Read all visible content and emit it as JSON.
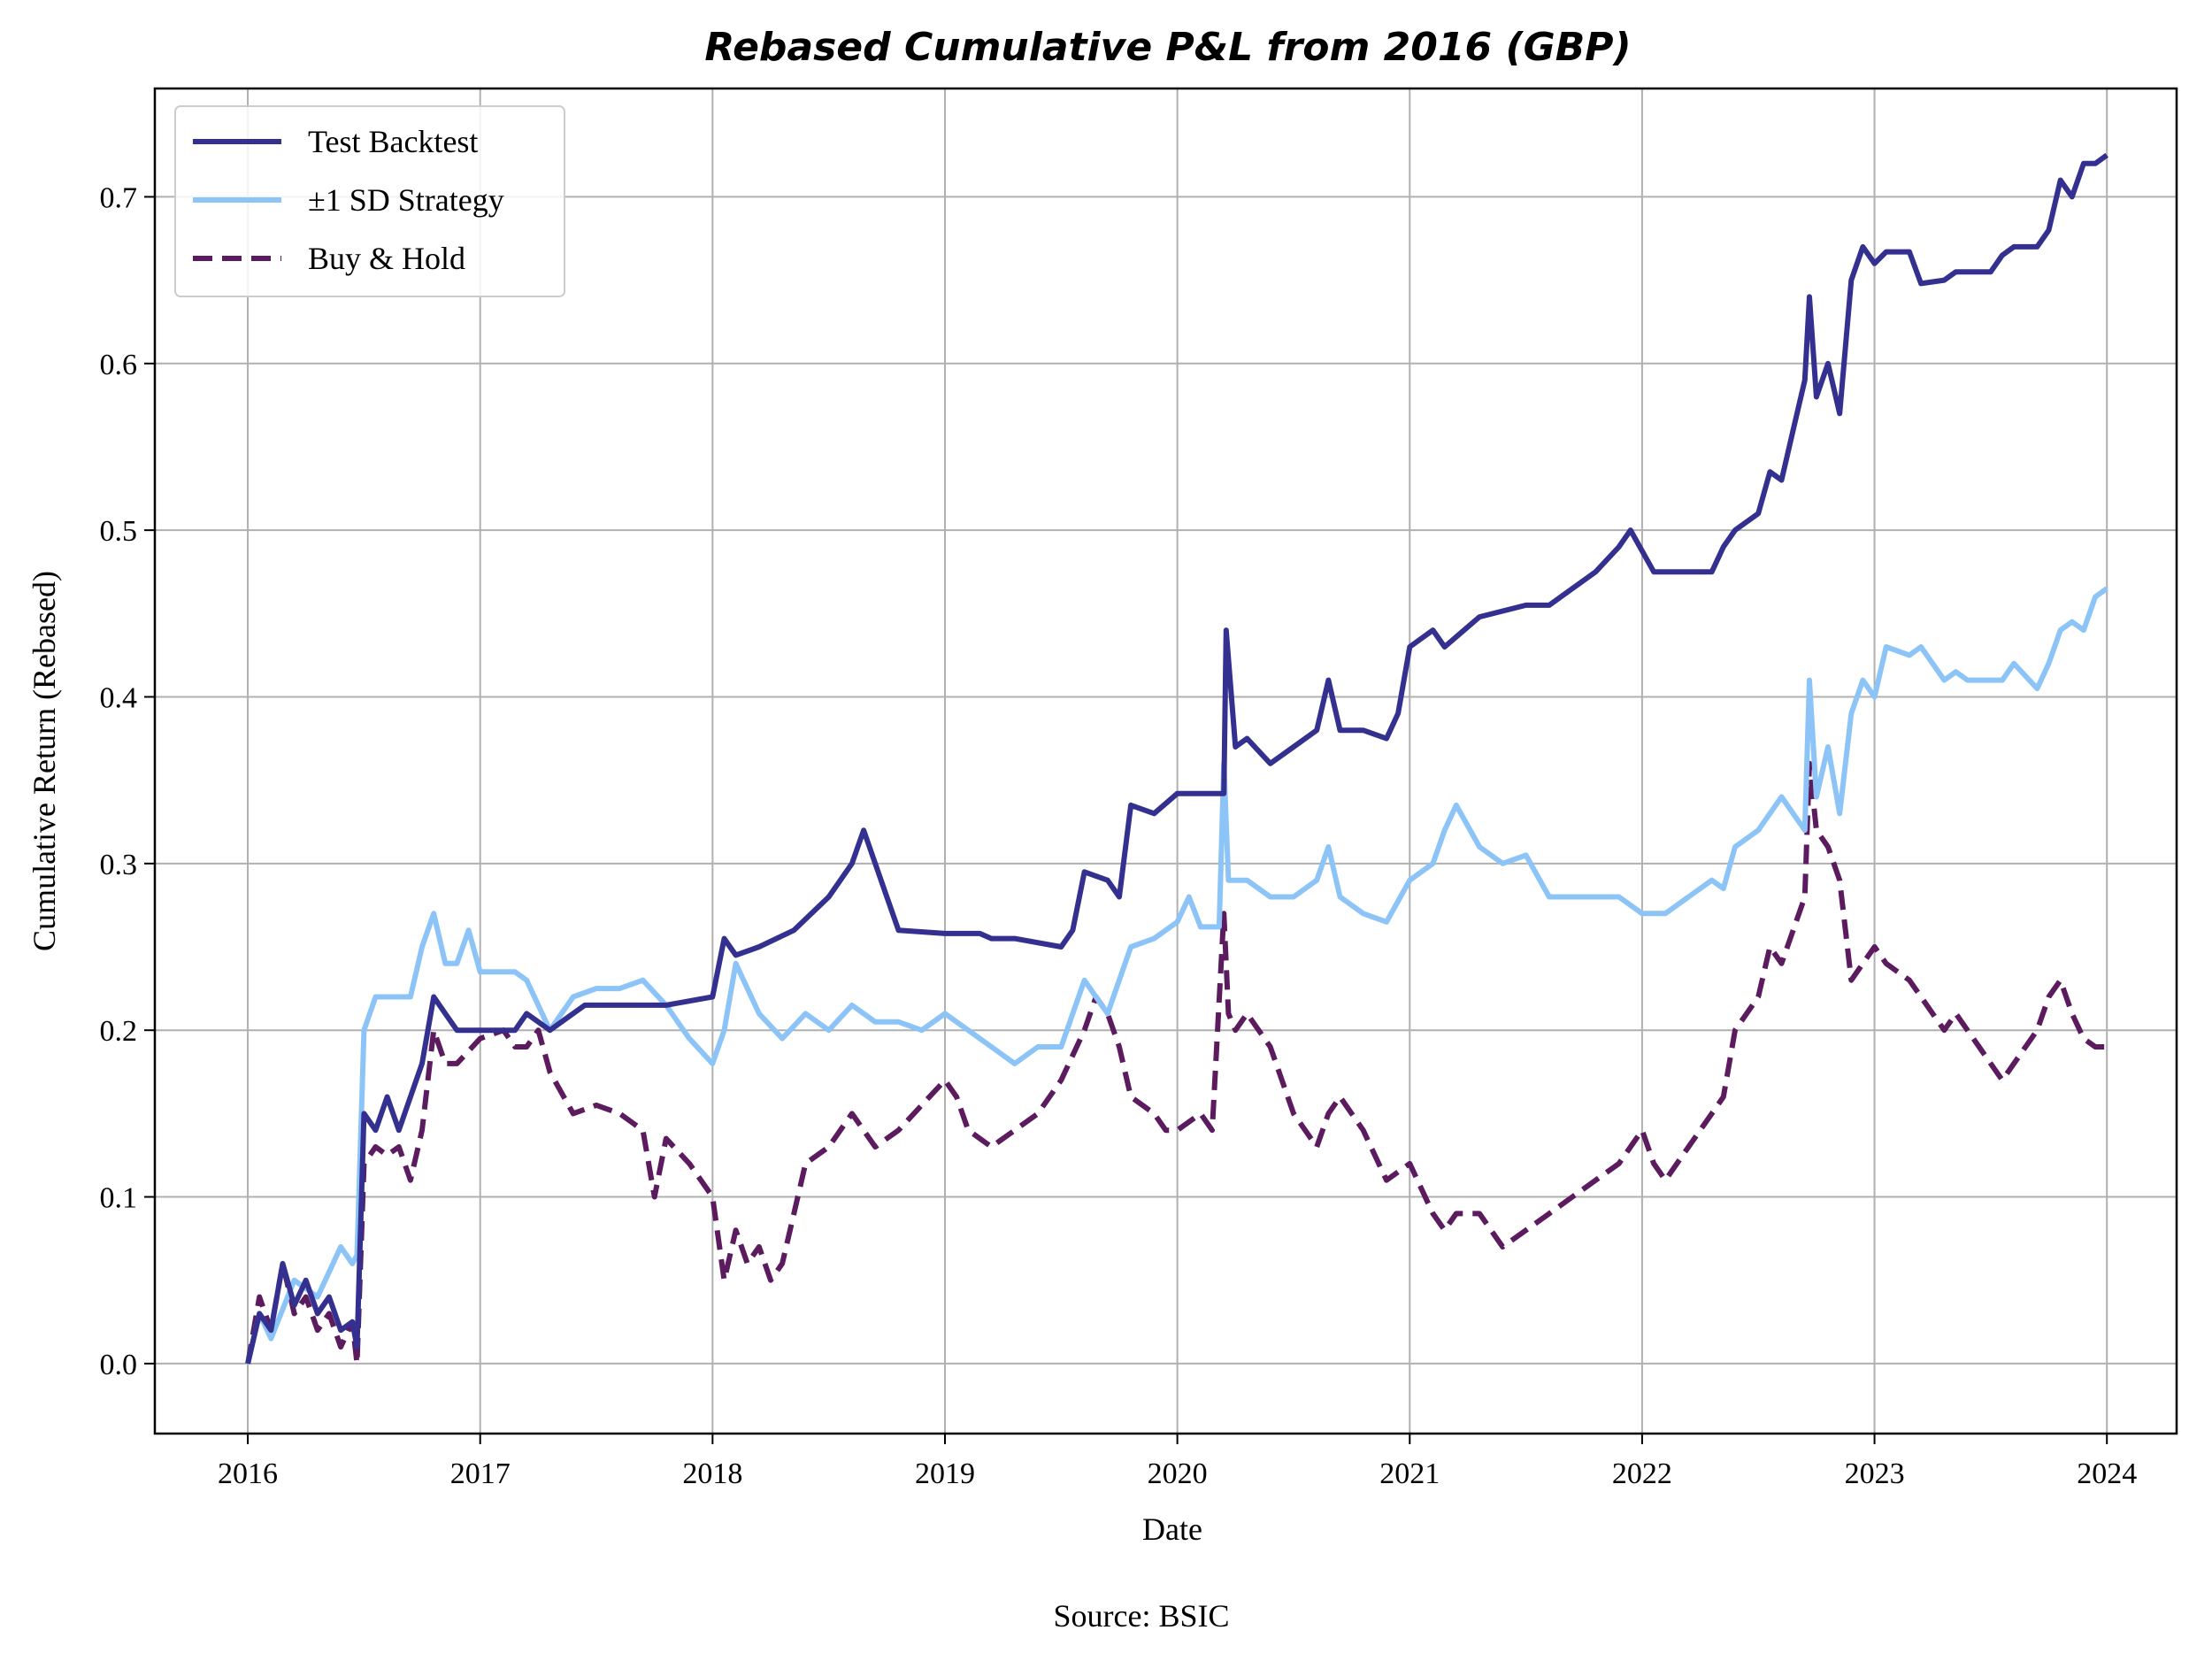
{
  "chart_data": {
    "type": "line",
    "title": "Rebased Cumulative P&L from 2016 (GBP)",
    "xlabel": "Date",
    "ylabel": "Cumulative Return (Rebased)",
    "source": "Source: BSIC",
    "xlim": [
      2015.6,
      2024.3
    ],
    "ylim": [
      -0.042,
      0.765
    ],
    "x_ticks": [
      2016,
      2017,
      2018,
      2019,
      2020,
      2021,
      2022,
      2023,
      2024
    ],
    "x_tick_labels": [
      "2016",
      "2017",
      "2018",
      "2019",
      "2020",
      "2021",
      "2022",
      "2023",
      "2024"
    ],
    "y_ticks": [
      0.0,
      0.1,
      0.2,
      0.3,
      0.4,
      0.5,
      0.6,
      0.7
    ],
    "y_tick_labels": [
      "0.0",
      "0.1",
      "0.2",
      "0.3",
      "0.4",
      "0.5",
      "0.6",
      "0.7"
    ],
    "grid": true,
    "legend_position": "top-left",
    "series": [
      {
        "name": "Test Backtest",
        "color": "#343090",
        "dash": "solid",
        "x": [
          2016.0,
          2016.05,
          2016.1,
          2016.15,
          2016.2,
          2016.25,
          2016.3,
          2016.35,
          2016.4,
          2016.45,
          2016.47,
          2016.5,
          2016.55,
          2016.6,
          2016.65,
          2016.7,
          2016.75,
          2016.8,
          2016.85,
          2016.9,
          2017.0,
          2017.15,
          2017.2,
          2017.3,
          2017.45,
          2017.6,
          2017.8,
          2018.0,
          2018.05,
          2018.1,
          2018.2,
          2018.35,
          2018.5,
          2018.6,
          2018.65,
          2018.75,
          2018.8,
          2019.0,
          2019.05,
          2019.15,
          2019.2,
          2019.3,
          2019.5,
          2019.55,
          2019.6,
          2019.7,
          2019.75,
          2019.8,
          2019.9,
          2020.0,
          2020.1,
          2020.2,
          2020.21,
          2020.25,
          2020.3,
          2020.4,
          2020.5,
          2020.6,
          2020.65,
          2020.7,
          2020.8,
          2020.9,
          2020.95,
          2021.0,
          2021.1,
          2021.15,
          2021.3,
          2021.5,
          2021.6,
          2021.7,
          2021.8,
          2021.9,
          2021.95,
          2022.05,
          2022.2,
          2022.3,
          2022.35,
          2022.4,
          2022.5,
          2022.55,
          2022.6,
          2022.65,
          2022.7,
          2022.72,
          2022.75,
          2022.8,
          2022.85,
          2022.9,
          2022.95,
          2023.0,
          2023.05,
          2023.15,
          2023.2,
          2023.3,
          2023.35,
          2023.45,
          2023.5,
          2023.55,
          2023.6,
          2023.7,
          2023.75,
          2023.8,
          2023.85,
          2023.9,
          2023.95,
          2024.0
        ],
        "y": [
          0.0,
          0.03,
          0.02,
          0.06,
          0.035,
          0.05,
          0.03,
          0.04,
          0.02,
          0.025,
          0.01,
          0.15,
          0.14,
          0.16,
          0.14,
          0.16,
          0.18,
          0.22,
          0.21,
          0.2,
          0.2,
          0.2,
          0.21,
          0.2,
          0.215,
          0.215,
          0.215,
          0.22,
          0.255,
          0.245,
          0.25,
          0.26,
          0.28,
          0.3,
          0.32,
          0.28,
          0.26,
          0.258,
          0.258,
          0.258,
          0.255,
          0.255,
          0.25,
          0.26,
          0.295,
          0.29,
          0.28,
          0.335,
          0.33,
          0.342,
          0.342,
          0.342,
          0.44,
          0.37,
          0.375,
          0.36,
          0.37,
          0.38,
          0.41,
          0.38,
          0.38,
          0.375,
          0.39,
          0.43,
          0.44,
          0.43,
          0.448,
          0.455,
          0.455,
          0.465,
          0.475,
          0.49,
          0.5,
          0.475,
          0.475,
          0.475,
          0.49,
          0.5,
          0.51,
          0.535,
          0.53,
          0.56,
          0.59,
          0.64,
          0.58,
          0.6,
          0.57,
          0.65,
          0.67,
          0.66,
          0.667,
          0.667,
          0.648,
          0.65,
          0.655,
          0.655,
          0.655,
          0.665,
          0.67,
          0.67,
          0.68,
          0.71,
          0.7,
          0.72,
          0.72,
          0.725
        ]
      },
      {
        "name": "±1 SD Strategy",
        "color": "#8CC4F8",
        "dash": "solid",
        "x": [
          2016.0,
          2016.05,
          2016.1,
          2016.2,
          2016.3,
          2016.4,
          2016.45,
          2016.47,
          2016.5,
          2016.55,
          2016.6,
          2016.65,
          2016.7,
          2016.75,
          2016.8,
          2016.85,
          2016.9,
          2016.95,
          2017.0,
          2017.1,
          2017.15,
          2017.2,
          2017.3,
          2017.4,
          2017.5,
          2017.6,
          2017.7,
          2017.8,
          2017.9,
          2018.0,
          2018.05,
          2018.1,
          2018.2,
          2018.3,
          2018.4,
          2018.5,
          2018.6,
          2018.7,
          2018.8,
          2018.9,
          2019.0,
          2019.1,
          2019.2,
          2019.3,
          2019.4,
          2019.5,
          2019.6,
          2019.7,
          2019.8,
          2019.9,
          2020.0,
          2020.05,
          2020.1,
          2020.18,
          2020.2,
          2020.22,
          2020.3,
          2020.4,
          2020.5,
          2020.6,
          2020.65,
          2020.7,
          2020.8,
          2020.9,
          2021.0,
          2021.1,
          2021.15,
          2021.2,
          2021.3,
          2021.4,
          2021.5,
          2021.6,
          2021.7,
          2021.8,
          2021.9,
          2022.0,
          2022.1,
          2022.2,
          2022.3,
          2022.35,
          2022.4,
          2022.5,
          2022.6,
          2022.7,
          2022.72,
          2022.75,
          2022.8,
          2022.85,
          2022.9,
          2022.95,
          2023.0,
          2023.05,
          2023.15,
          2023.2,
          2023.3,
          2023.35,
          2023.4,
          2023.5,
          2023.55,
          2023.6,
          2023.7,
          2023.75,
          2023.8,
          2023.85,
          2023.9,
          2023.95,
          2024.0
        ],
        "y": [
          0.0,
          0.03,
          0.015,
          0.05,
          0.04,
          0.07,
          0.06,
          0.065,
          0.2,
          0.22,
          0.22,
          0.22,
          0.22,
          0.25,
          0.27,
          0.24,
          0.24,
          0.26,
          0.235,
          0.235,
          0.235,
          0.23,
          0.2,
          0.22,
          0.225,
          0.225,
          0.23,
          0.215,
          0.195,
          0.18,
          0.2,
          0.24,
          0.21,
          0.195,
          0.21,
          0.2,
          0.215,
          0.205,
          0.205,
          0.2,
          0.21,
          0.2,
          0.19,
          0.18,
          0.19,
          0.19,
          0.23,
          0.21,
          0.25,
          0.255,
          0.265,
          0.28,
          0.262,
          0.262,
          0.36,
          0.29,
          0.29,
          0.28,
          0.28,
          0.29,
          0.31,
          0.28,
          0.27,
          0.265,
          0.29,
          0.3,
          0.32,
          0.335,
          0.31,
          0.3,
          0.305,
          0.28,
          0.28,
          0.28,
          0.28,
          0.27,
          0.27,
          0.28,
          0.29,
          0.285,
          0.31,
          0.32,
          0.34,
          0.32,
          0.41,
          0.34,
          0.37,
          0.33,
          0.39,
          0.41,
          0.4,
          0.43,
          0.425,
          0.43,
          0.41,
          0.415,
          0.41,
          0.41,
          0.41,
          0.42,
          0.405,
          0.42,
          0.44,
          0.445,
          0.44,
          0.46,
          0.465
        ]
      },
      {
        "name": "Buy & Hold",
        "color": "#5B1B5E",
        "dash": "dashed",
        "x": [
          2016.0,
          2016.05,
          2016.1,
          2016.15,
          2016.2,
          2016.25,
          2016.3,
          2016.35,
          2016.4,
          2016.45,
          2016.47,
          2016.5,
          2016.55,
          2016.6,
          2016.65,
          2016.7,
          2016.75,
          2016.8,
          2016.85,
          2016.9,
          2017.0,
          2017.1,
          2017.15,
          2017.2,
          2017.25,
          2017.3,
          2017.4,
          2017.5,
          2017.6,
          2017.7,
          2017.75,
          2017.8,
          2017.9,
          2018.0,
          2018.05,
          2018.1,
          2018.15,
          2018.2,
          2018.25,
          2018.3,
          2018.35,
          2018.4,
          2018.5,
          2018.6,
          2018.7,
          2018.8,
          2018.9,
          2019.0,
          2019.05,
          2019.1,
          2019.2,
          2019.3,
          2019.4,
          2019.5,
          2019.6,
          2019.65,
          2019.7,
          2019.75,
          2019.8,
          2019.9,
          2019.95,
          2020.0,
          2020.1,
          2020.15,
          2020.2,
          2020.22,
          2020.25,
          2020.3,
          2020.4,
          2020.5,
          2020.6,
          2020.65,
          2020.7,
          2020.8,
          2020.9,
          2021.0,
          2021.1,
          2021.15,
          2021.2,
          2021.3,
          2021.4,
          2021.5,
          2021.6,
          2021.7,
          2021.8,
          2021.9,
          2022.0,
          2022.05,
          2022.1,
          2022.2,
          2022.3,
          2022.35,
          2022.4,
          2022.5,
          2022.55,
          2022.6,
          2022.7,
          2022.72,
          2022.75,
          2022.8,
          2022.85,
          2022.9,
          2022.95,
          2023.0,
          2023.05,
          2023.15,
          2023.2,
          2023.3,
          2023.35,
          2023.45,
          2023.5,
          2023.55,
          2023.6,
          2023.7,
          2023.75,
          2023.8,
          2023.85,
          2023.9,
          2023.95,
          2024.0
        ],
        "y": [
          0.0,
          0.04,
          0.02,
          0.06,
          0.03,
          0.04,
          0.02,
          0.03,
          0.01,
          0.025,
          0.0,
          0.12,
          0.13,
          0.125,
          0.13,
          0.11,
          0.14,
          0.2,
          0.18,
          0.18,
          0.195,
          0.2,
          0.19,
          0.19,
          0.2,
          0.175,
          0.15,
          0.155,
          0.15,
          0.14,
          0.1,
          0.135,
          0.12,
          0.1,
          0.05,
          0.08,
          0.06,
          0.07,
          0.05,
          0.06,
          0.09,
          0.12,
          0.13,
          0.15,
          0.13,
          0.14,
          0.155,
          0.17,
          0.16,
          0.14,
          0.13,
          0.14,
          0.15,
          0.17,
          0.2,
          0.22,
          0.21,
          0.19,
          0.16,
          0.15,
          0.14,
          0.14,
          0.15,
          0.14,
          0.27,
          0.21,
          0.2,
          0.21,
          0.19,
          0.15,
          0.13,
          0.15,
          0.16,
          0.14,
          0.11,
          0.12,
          0.09,
          0.08,
          0.09,
          0.09,
          0.07,
          0.08,
          0.09,
          0.1,
          0.11,
          0.12,
          0.14,
          0.12,
          0.11,
          0.13,
          0.15,
          0.16,
          0.2,
          0.22,
          0.25,
          0.24,
          0.28,
          0.36,
          0.32,
          0.31,
          0.29,
          0.23,
          0.24,
          0.25,
          0.24,
          0.23,
          0.22,
          0.2,
          0.21,
          0.19,
          0.18,
          0.17,
          0.18,
          0.2,
          0.22,
          0.23,
          0.21,
          0.195,
          0.19,
          0.19
        ]
      }
    ]
  }
}
